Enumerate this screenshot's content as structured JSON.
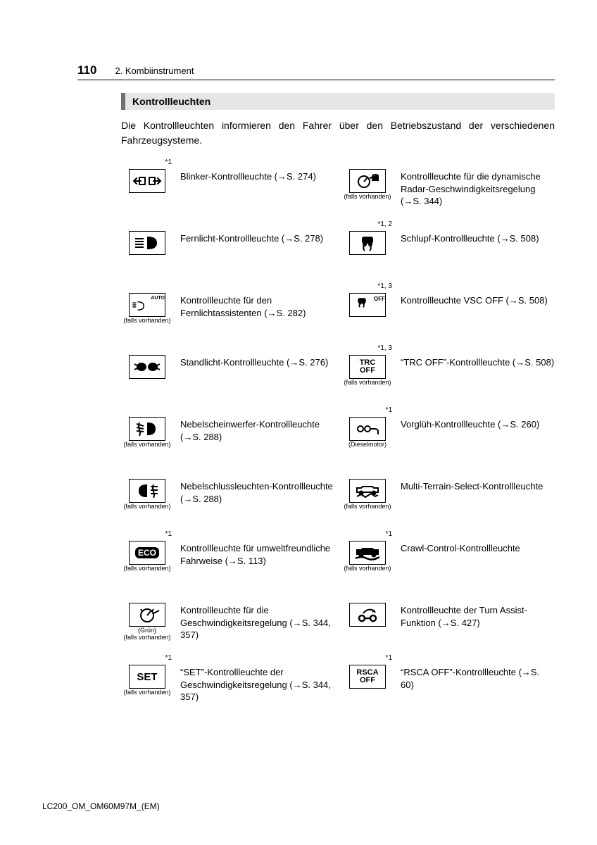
{
  "page_number": "110",
  "chapter": "2. Kombiinstrument",
  "section_title": "Kontrollleuchten",
  "intro_text": "Die Kontrollleuchten informieren den Fahrer über den Betriebszustand der verschiedenen Fahrzeugsysteme.",
  "footer": "LC200_OM_OM60M97M_(EM)",
  "arrow": "→",
  "left": [
    {
      "sup": "*1",
      "sub": "",
      "icon": "turn",
      "desc": "Blinker-Kontrollleuchte (→S. 274)"
    },
    {
      "sup": "",
      "sub": "",
      "icon": "highbeam",
      "desc": "Fernlicht-Kontrollleuchte (→S. 278)"
    },
    {
      "sup": "",
      "sub": "(falls vorhanden)",
      "icon": "auto",
      "desc": "Kontrollleuchte für den Fernlichtassistenten (→S. 282)"
    },
    {
      "sup": "",
      "sub": "",
      "icon": "parklight",
      "desc": "Standlicht-Kontrollleuchte (→S. 276)"
    },
    {
      "sup": "",
      "sub": "(falls vorhanden)",
      "icon": "frontfog",
      "desc": "Nebelscheinwerfer-Kontrollleuchte (→S. 288)"
    },
    {
      "sup": "",
      "sub": "(falls vorhanden)",
      "icon": "rearfog",
      "desc": "Nebelschlussleuchten-Kontrollleuchte (→S. 288)"
    },
    {
      "sup": "*1",
      "sub": "(falls vorhanden)",
      "icon": "eco",
      "desc": "Kontrollleuchte für umweltfreundliche Fahrweise (→S. 113)"
    },
    {
      "sup": "",
      "sub": "(Grün)\n(falls vorhanden)",
      "icon": "cruise",
      "desc": "Kontrollleuchte für die Geschwindigkeitsregelung (→S. 344, 357)"
    },
    {
      "sup": "*1",
      "sub": "(falls vorhanden)",
      "icon": "set",
      "desc": "“SET”-Kontrollleuchte der Geschwindigkeitsregelung (→S. 344, 357)"
    }
  ],
  "right": [
    {
      "sup": "",
      "sub": "(falls vorhanden)",
      "icon": "radar",
      "desc": "Kontrollleuchte für die dynamische Radar-Geschwindigkeitsregelung (→S. 344)"
    },
    {
      "sup": "*1, 2",
      "sub": "",
      "icon": "slip",
      "desc": "Schlupf-Kontrollleuchte (→S. 508)"
    },
    {
      "sup": "*1, 3",
      "sub": "",
      "icon": "vscoff",
      "desc": "Kontrollleuchte VSC OFF (→S. 508)"
    },
    {
      "sup": "*1, 3",
      "sub": "(falls vorhanden)",
      "icon": "trcoff",
      "desc": "“TRC OFF”-Kontrollleuchte (→S. 508)"
    },
    {
      "sup": "*1",
      "sub": "(Dieselmotor)",
      "icon": "glow",
      "desc": "Vorglüh-Kontrollleuchte (→S. 260)"
    },
    {
      "sup": "",
      "sub": "(falls vorhanden)",
      "icon": "mts",
      "desc": "Multi-Terrain-Select-Kontrollleuchte"
    },
    {
      "sup": "*1",
      "sub": "(falls vorhanden)",
      "icon": "crawl",
      "desc": "Crawl-Control-Kontrollleuchte"
    },
    {
      "sup": "",
      "sub": "",
      "icon": "turnassist",
      "desc": "Kontrollleuchte der Turn Assist-Funktion (→S. 427)"
    },
    {
      "sup": "*1",
      "sub": "",
      "icon": "rsca",
      "desc": "“RSCA OFF”-Kontrollleuchte (→S. 60)"
    }
  ],
  "icon_text": {
    "set": "SET",
    "trcoff": "TRC\nOFF",
    "rsca": "RSCA\nOFF",
    "eco": "ECO",
    "auto": "AUTO",
    "vscoff": "OFF"
  }
}
